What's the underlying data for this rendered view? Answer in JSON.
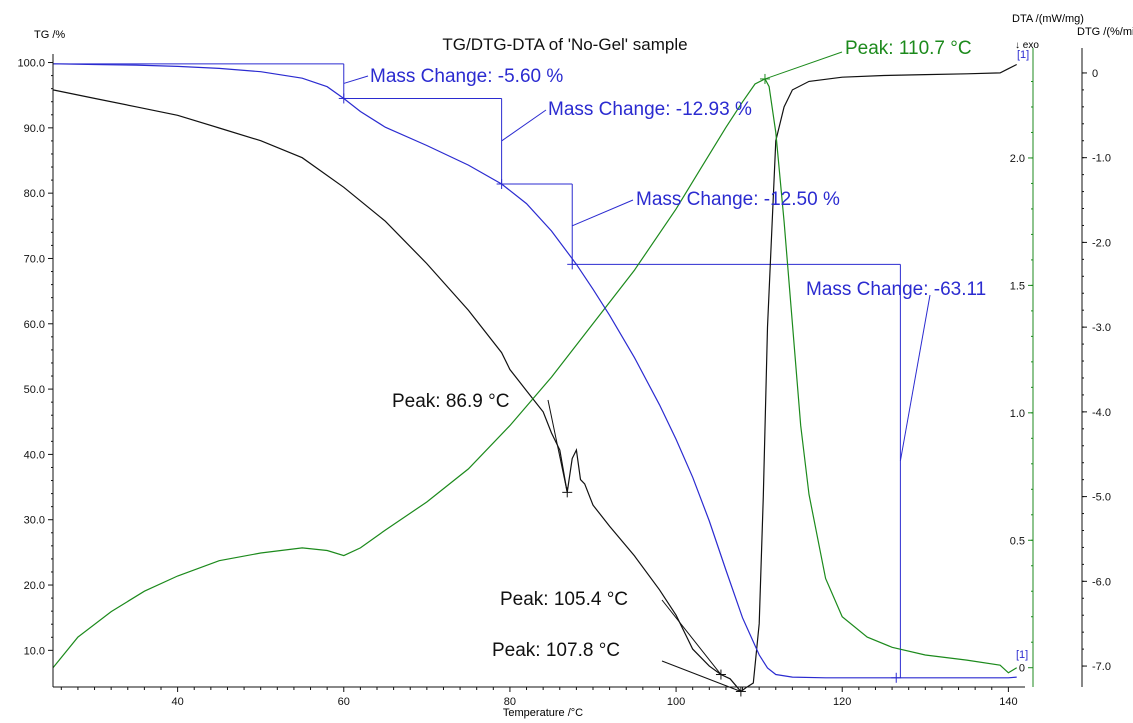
{
  "chart_data": {
    "type": "line",
    "title": "TG/DTG-DTA of  'No-Gel' sample",
    "xlabel": "Temperature /°C",
    "xlim": [
      25,
      142
    ],
    "x_ticks": [
      40,
      60,
      80,
      100,
      120,
      140
    ],
    "left_axis": {
      "label": "TG /%",
      "lim": [
        5,
        101
      ],
      "ticks": [
        10.0,
        20.0,
        30.0,
        40.0,
        50.0,
        60.0,
        70.0,
        80.0,
        90.0,
        100.0
      ],
      "tick_labels": [
        "10.0",
        "20.0",
        "30.0",
        "40.0",
        "50.0",
        "60.0",
        "70.0",
        "80.0",
        "90.0",
        "100.0"
      ]
    },
    "dta_axis": {
      "label": "DTA /(mW/mg)",
      "lim": [
        -0.06,
        2.4
      ],
      "ticks": [
        0,
        0.5,
        1.0,
        1.5,
        2.0
      ],
      "tick_labels": [
        "0",
        "0.5",
        "1.0",
        "1.5",
        "2.0"
      ],
      "marker": "↓ exo"
    },
    "dtg_axis": {
      "label": "DTG /(%/min)",
      "lim": [
        -7.2,
        0.2
      ],
      "ticks": [
        0,
        -1.0,
        -2.0,
        -3.0,
        -4.0,
        -5.0,
        -6.0,
        -7.0
      ],
      "tick_labels": [
        "0",
        "-1.0",
        "-2.0",
        "-3.0",
        "-4.0",
        "-5.0",
        "-6.0",
        "-7.0"
      ]
    },
    "series": [
      {
        "axis": "left",
        "color": "#2b2bd0",
        "x": [
          25,
          30,
          35,
          40,
          45,
          50,
          55,
          58,
          60,
          62,
          65,
          70,
          75,
          79,
          82,
          85,
          88,
          90,
          92,
          95,
          98,
          100,
          102,
          104,
          106,
          108,
          110,
          111,
          112,
          114,
          118,
          125,
          130,
          135,
          140,
          141
        ],
        "y": [
          99.8,
          99.7,
          99.6,
          99.4,
          99.1,
          98.6,
          97.6,
          96.3,
          94.5,
          92.5,
          90.1,
          87.3,
          84.3,
          81.4,
          78.4,
          74.2,
          69.1,
          65.3,
          61.3,
          54.8,
          47.6,
          42.3,
          36.5,
          29.8,
          22.3,
          15.0,
          9.3,
          7.3,
          6.3,
          5.9,
          5.8,
          5.8,
          5.8,
          5.8,
          5.8,
          5.9
        ]
      },
      {
        "axis": "dta",
        "color": "#1c8a1c",
        "x": [
          25,
          28,
          32,
          36,
          40,
          45,
          50,
          55,
          58,
          60,
          62,
          65,
          70,
          75,
          80,
          85,
          90,
          95,
          100,
          103,
          106,
          108,
          109.5,
          110.7,
          111.2,
          112,
          113,
          114,
          115,
          116,
          118,
          120,
          123,
          126,
          130,
          135,
          139,
          140,
          141
        ],
        "y": [
          0.0,
          0.12,
          0.22,
          0.3,
          0.36,
          0.42,
          0.45,
          0.47,
          0.46,
          0.44,
          0.47,
          0.54,
          0.65,
          0.78,
          0.95,
          1.14,
          1.35,
          1.56,
          1.8,
          1.96,
          2.12,
          2.22,
          2.29,
          2.31,
          2.28,
          2.1,
          1.75,
          1.35,
          0.95,
          0.68,
          0.35,
          0.2,
          0.12,
          0.08,
          0.05,
          0.03,
          0.01,
          -0.02,
          0.0
        ]
      },
      {
        "axis": "dtg",
        "color": "#111111",
        "x": [
          25,
          30,
          35,
          40,
          45,
          50,
          55,
          60,
          65,
          70,
          75,
          79,
          80,
          82,
          84,
          85,
          86,
          86.9,
          87.5,
          88,
          88.5,
          89,
          90,
          92,
          95,
          98,
          100,
          102,
          104,
          105.4,
          106.5,
          107.8,
          108.5,
          109.3,
          110,
          110.5,
          111,
          112,
          113,
          114,
          116,
          120,
          125,
          130,
          135,
          139,
          140,
          141
        ],
        "y": [
          -0.2,
          -0.3,
          -0.4,
          -0.5,
          -0.65,
          -0.8,
          -1.0,
          -1.35,
          -1.75,
          -2.25,
          -2.8,
          -3.3,
          -3.5,
          -3.75,
          -4.0,
          -4.25,
          -4.45,
          -4.95,
          -4.55,
          -4.45,
          -4.8,
          -4.85,
          -5.1,
          -5.35,
          -5.7,
          -6.1,
          -6.4,
          -6.8,
          -7.0,
          -7.1,
          -7.15,
          -7.3,
          -7.25,
          -7.2,
          -6.5,
          -5.0,
          -3.0,
          -0.8,
          -0.4,
          -0.2,
          -0.1,
          -0.05,
          -0.03,
          -0.02,
          -0.01,
          0.0,
          0.05,
          0.1
        ]
      }
    ],
    "annotations": [
      {
        "text": "Mass Change: -5.60 %",
        "color": "#2b2bd0"
      },
      {
        "text": "Mass Change: -12.93 %",
        "color": "#2b2bd0"
      },
      {
        "text": "Mass Change: -12.50 %",
        "color": "#2b2bd0"
      },
      {
        "text": "Mass Change: -63.11",
        "color": "#2b2bd0"
      },
      {
        "text": "Peak: 110.7 °C",
        "color": "#1c8a1c"
      },
      {
        "text": "Peak: 86.9 °C",
        "color": "#111111"
      },
      {
        "text": "Peak: 105.4 °C",
        "color": "#111111"
      },
      {
        "text": "Peak: 107.8 °C",
        "color": "#111111"
      }
    ],
    "curve_markers": [
      "[1]",
      "[1]"
    ]
  }
}
